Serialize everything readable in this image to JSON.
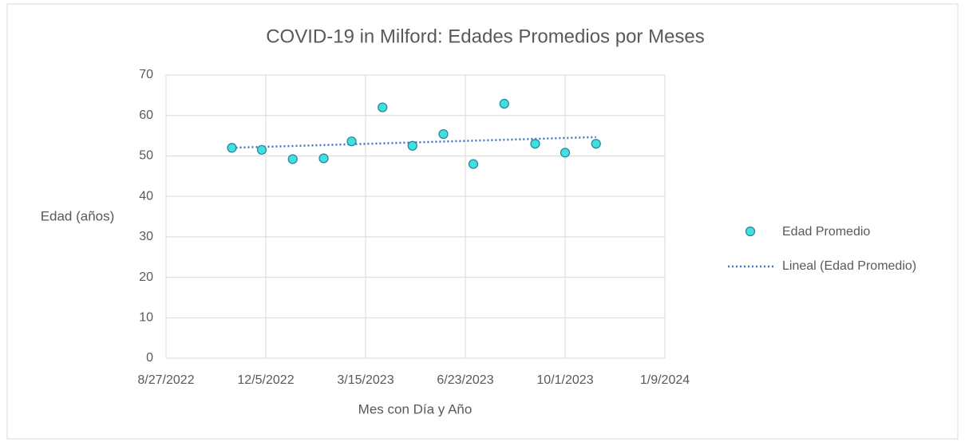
{
  "chart_data": {
    "type": "scatter",
    "title": "COVID-19 in Milford: Edades Promedios por Meses",
    "x_label": "Mes con Día y Año",
    "y_label": "Edad (años)",
    "x": [
      "11/1/2022",
      "12/1/2022",
      "1/1/2023",
      "2/1/2023",
      "3/1/2023",
      "4/1/2023",
      "5/1/2023",
      "6/1/2023",
      "7/1/2023",
      "8/1/2023",
      "9/1/2023",
      "10/1/2023",
      "11/1/2023"
    ],
    "series": [
      {
        "name": "Edad Promedio",
        "color": "#3fe0e0",
        "values": [
          52,
          51.5,
          49.2,
          49.4,
          53.6,
          62,
          52.5,
          55.4,
          48,
          62.9,
          53,
          50.8,
          53
        ]
      }
    ],
    "trendline": {
      "name": "Lineal (Edad Promedio)",
      "color": "#4472c4"
    },
    "xlim": [
      "8/27/2022",
      "1/9/2024"
    ],
    "xticks": [
      "8/27/2022",
      "12/5/2022",
      "3/15/2023",
      "6/23/2023",
      "10/1/2023",
      "1/9/2024"
    ],
    "ylim": [
      0,
      70
    ],
    "yticks": [
      0,
      10,
      20,
      30,
      40,
      50,
      60,
      70
    ],
    "grid": true,
    "legend": "right"
  }
}
